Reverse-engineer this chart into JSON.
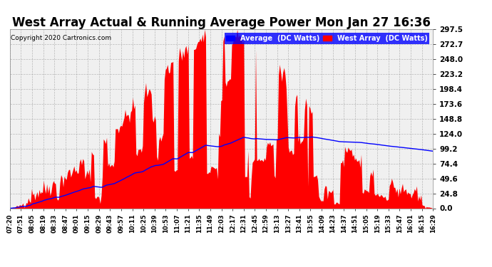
{
  "title": "West Array Actual & Running Average Power Mon Jan 27 16:36",
  "copyright": "Copyright 2020 Cartronics.com",
  "legend_avg": "Average  (DC Watts)",
  "legend_west": "West Array  (DC Watts)",
  "yticks": [
    0.0,
    24.8,
    49.6,
    74.4,
    99.2,
    124.0,
    148.8,
    173.6,
    198.4,
    223.2,
    248.0,
    272.7,
    297.5
  ],
  "ymax": 297.5,
  "ymin": 0.0,
  "bg_color": "#ffffff",
  "plot_bg_color": "#f0f0f0",
  "grid_color": "#aaaaaa",
  "bar_color": "#ff0000",
  "avg_line_color": "#0000ff",
  "title_fontsize": 12,
  "xtick_labels": [
    "07:20",
    "07:51",
    "08:05",
    "08:19",
    "08:33",
    "08:47",
    "09:01",
    "09:15",
    "09:29",
    "09:43",
    "09:57",
    "10:11",
    "10:25",
    "10:39",
    "10:53",
    "11:07",
    "11:21",
    "11:35",
    "11:49",
    "12:03",
    "12:17",
    "12:31",
    "12:45",
    "12:59",
    "13:13",
    "13:27",
    "13:41",
    "13:55",
    "14:09",
    "14:23",
    "14:37",
    "14:51",
    "15:05",
    "15:19",
    "15:33",
    "15:47",
    "16:01",
    "16:15",
    "16:29"
  ],
  "n_points": 390,
  "seed": 42
}
